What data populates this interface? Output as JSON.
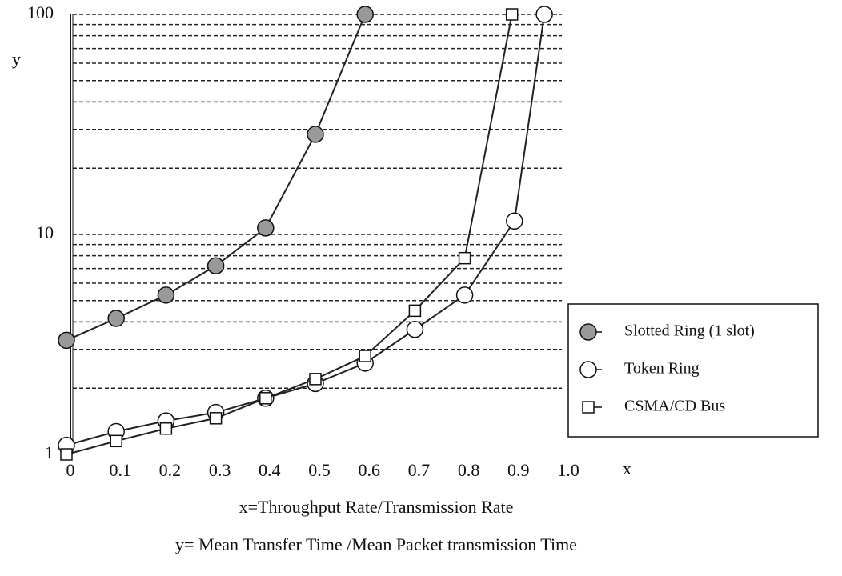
{
  "chart_data": {
    "type": "line",
    "log_y": true,
    "grid": true,
    "legend": "right",
    "x_label": "x",
    "y_label": "y",
    "x_title": "x=Throughput Rate/Transmission Rate",
    "y_title": "y= Mean Transfer Time /Mean Packet transmission Time",
    "xlim": [
      0,
      1
    ],
    "xticks": [
      0,
      0.1,
      0.2,
      0.3,
      0.4,
      0.5,
      0.6,
      0.7,
      0.8,
      0.9,
      {
        "value": 1,
        "label": "1.0"
      }
    ],
    "ylim": [
      1,
      100
    ],
    "yticks": [
      1,
      10,
      100
    ],
    "minor_yticks": [
      2,
      3,
      4,
      5,
      6,
      7,
      8,
      9,
      20,
      30,
      40,
      50,
      60,
      70,
      80,
      90
    ],
    "series": [
      {
        "name": "Slotted Ring (1 slot)",
        "marker": "filled-circle",
        "color": "#222",
        "x": [
          0,
          0.1,
          0.2,
          0.3,
          0.4,
          0.5,
          0.6
        ],
        "values": [
          3.3,
          4.15,
          5.3,
          7.2,
          10.7,
          28.5,
          100
        ]
      },
      {
        "name": "Token Ring",
        "marker": "circle",
        "color": "#222",
        "x": [
          0,
          0.1,
          0.2,
          0.3,
          0.4,
          0.5,
          0.6,
          0.7,
          0.8,
          0.9,
          0.96
        ],
        "values": [
          1.1,
          1.27,
          1.42,
          1.55,
          1.8,
          2.1,
          2.6,
          3.7,
          5.3,
          11.5,
          100
        ]
      },
      {
        "name": "CSMA/CD Bus",
        "marker": "square",
        "color": "#222",
        "x": [
          0,
          0.1,
          0.2,
          0.3,
          0.4,
          0.5,
          0.6,
          0.7,
          0.8,
          0.895
        ],
        "values": [
          1,
          1.15,
          1.31,
          1.46,
          1.8,
          2.2,
          2.8,
          4.5,
          7.8,
          100
        ]
      }
    ]
  }
}
